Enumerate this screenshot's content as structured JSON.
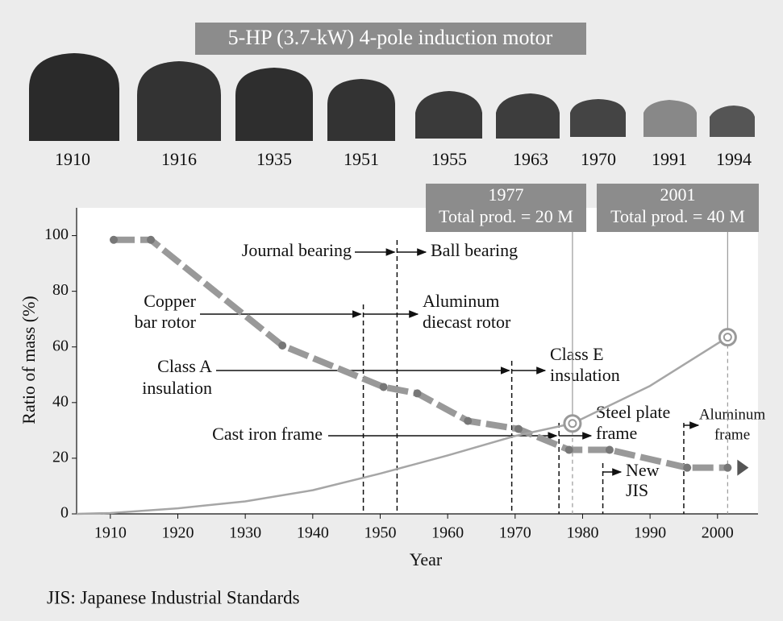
{
  "header": {
    "title": "5-HP (3.7-kW) 4-pole induction motor",
    "photo_years": [
      "1910",
      "1916",
      "1935",
      "1951",
      "1955",
      "1963",
      "1970",
      "1991",
      "1994"
    ]
  },
  "footnote": "JIS: Japanese Industrial Standards",
  "chart_data": {
    "type": "line",
    "x_label": "Year",
    "y_label": "Ratio of mass (%)",
    "xlim": [
      1905,
      2006
    ],
    "ylim": [
      0,
      110
    ],
    "xticks": [
      1910,
      1920,
      1930,
      1940,
      1950,
      1960,
      1970,
      1980,
      1990,
      2000
    ],
    "yticks": [
      0,
      20,
      40,
      60,
      80,
      100
    ],
    "series": [
      {
        "name": "Ratio of mass",
        "color": "#999999",
        "x": [
          1910.5,
          1916,
          1935.5,
          1950.5,
          1955.5,
          1963,
          1970.5,
          1978,
          1984,
          1995.5,
          2001.5
        ],
        "values": [
          98.5,
          98.5,
          60.5,
          45.6,
          43.3,
          33.4,
          30.5,
          23,
          23,
          16.6,
          16.6
        ]
      },
      {
        "name": "Total production",
        "color": "#a6a6a6",
        "x": [
          1905,
          1910,
          1920,
          1930,
          1940,
          1950,
          1960,
          1970,
          1978.5,
          1990,
          2001.5
        ],
        "values": [
          0,
          0.3,
          2,
          4.5,
          8.5,
          14.5,
          21,
          28,
          32.5,
          46,
          63.5
        ]
      }
    ],
    "callouts": [
      {
        "year": "1977",
        "text": "Total prod. = 20 M",
        "x": 1978.5,
        "y": 32.5
      },
      {
        "year": "2001",
        "text": "Total prod. = 40 M",
        "x": 2001.5,
        "y": 63.5
      }
    ],
    "events": [
      {
        "from": [
          "Journal bearing"
        ],
        "to": [
          "Ball bearing"
        ],
        "year": 1952.5
      },
      {
        "from": [
          "Copper",
          "bar rotor"
        ],
        "to": [
          "Aluminum",
          "diecast rotor"
        ],
        "year": 1947.5
      },
      {
        "from": [
          "Class A",
          "insulation"
        ],
        "to": [
          "Class E",
          "insulation"
        ],
        "year": 1969.5
      },
      {
        "from": [
          "Cast iron frame"
        ],
        "to": [
          "Steel plate",
          "frame"
        ],
        "year": 1976.5
      },
      {
        "to": [
          "New",
          "JIS"
        ],
        "year": 1983
      },
      {
        "to": [
          "Aluminum",
          "frame"
        ],
        "year": 1995
      }
    ]
  }
}
